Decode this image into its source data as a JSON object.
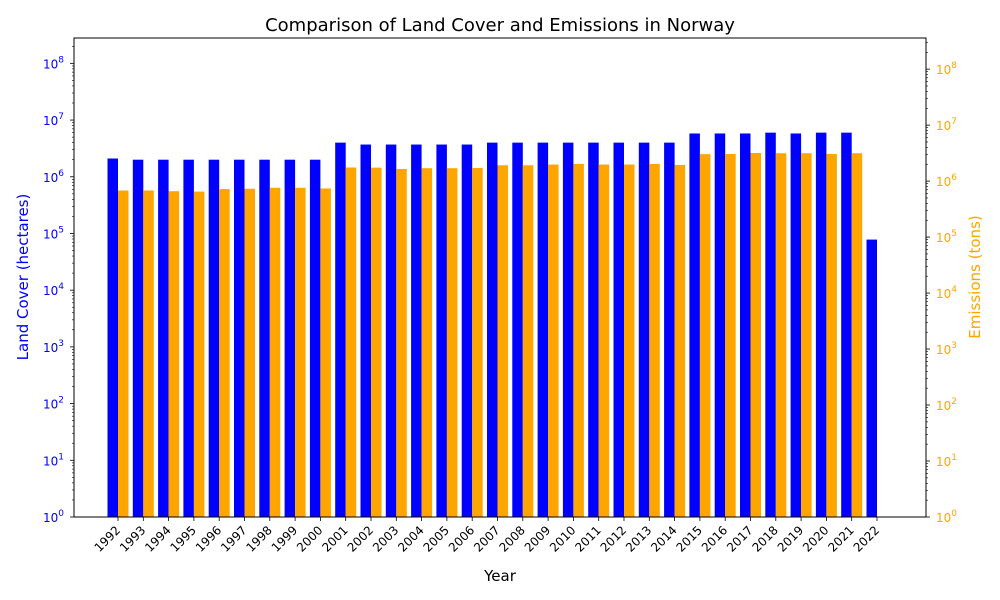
{
  "chart_data": {
    "type": "bar",
    "title": "Comparison of Land Cover and Emissions in Norway",
    "xlabel": "Year",
    "ylabel_left": "Land Cover (hectares)",
    "ylabel_right": "Emissions (tons)",
    "yscale": "log",
    "ylim_left": [
      1,
      280000000
    ],
    "ylim_right": [
      1,
      360000000
    ],
    "grid": false,
    "legend": "none",
    "categories": [
      "1992",
      "1993",
      "1994",
      "1995",
      "1996",
      "1997",
      "1998",
      "1999",
      "2000",
      "2001",
      "2002",
      "2003",
      "2004",
      "2005",
      "2006",
      "2007",
      "2008",
      "2009",
      "2010",
      "2011",
      "2012",
      "2013",
      "2014",
      "2015",
      "2016",
      "2017",
      "2018",
      "2019",
      "2020",
      "2021",
      "2022"
    ],
    "series": [
      {
        "axis": "left",
        "color": "#0000ff",
        "values": [
          2100000,
          2000000,
          2000000,
          2000000,
          2000000,
          2000000,
          2000000,
          2000000,
          2000000,
          4000000,
          3700000,
          3700000,
          3700000,
          3700000,
          3700000,
          4000000,
          4000000,
          4000000,
          4000000,
          4000000,
          4000000,
          4000000,
          4000000,
          5800000,
          5800000,
          5800000,
          6000000,
          5800000,
          6000000,
          6000000,
          78000
        ]
      },
      {
        "axis": "right",
        "color": "#ffa500",
        "values": [
          680000,
          680000,
          660000,
          650000,
          720000,
          730000,
          760000,
          760000,
          740000,
          1750000,
          1740000,
          1650000,
          1700000,
          1700000,
          1720000,
          1920000,
          1920000,
          1980000,
          2030000,
          1980000,
          1980000,
          2020000,
          1950000,
          3030000,
          3050000,
          3180000,
          3150000,
          3150000,
          3050000,
          3150000,
          null
        ]
      }
    ],
    "left_ticks": [
      "10^0",
      "10^1",
      "10^2",
      "10^3",
      "10^4",
      "10^5",
      "10^6",
      "10^7",
      "10^8"
    ],
    "right_ticks": [
      "10^0",
      "10^1",
      "10^2",
      "10^3",
      "10^4",
      "10^5",
      "10^6",
      "10^7",
      "10^8"
    ],
    "colors": {
      "left_axis": "#0000ff",
      "right_axis": "#ffa500",
      "text": "#000000"
    }
  }
}
